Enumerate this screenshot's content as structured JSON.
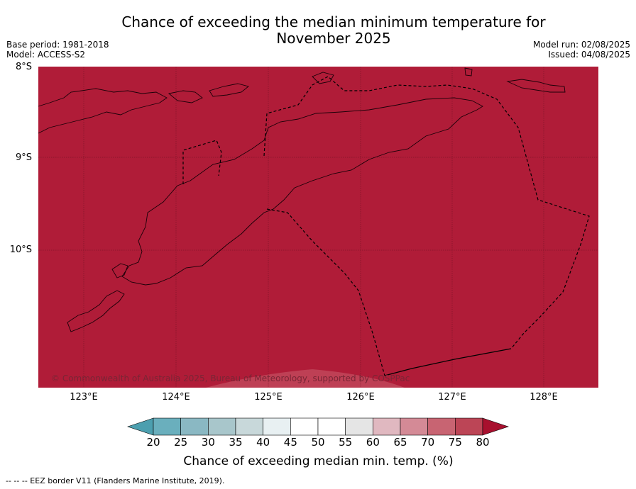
{
  "header": {
    "title_line1": "Chance of exceeding the median minimum temperature for",
    "title_line2": "November 2025",
    "base_period": "Base period: 1981-2018",
    "model": "Model: ACCESS-S2",
    "model_run": "Model run: 02/08/2025",
    "issued": "Issued: 04/08/2025"
  },
  "map": {
    "fill_color": "#b01c38",
    "region": "Timor / Savu Sea area",
    "fill_category": "80+",
    "lat_labels": [
      "8°S",
      "9°S",
      "10°S"
    ],
    "lon_labels": [
      "123°E",
      "124°E",
      "125°E",
      "126°E",
      "127°E",
      "128°E"
    ],
    "copyright": "© Commonwealth of Australia 2025, Bureau of Meteorology, supported by COSPPac"
  },
  "colorbar": {
    "ticks": [
      "20",
      "25",
      "30",
      "35",
      "40",
      "45",
      "50",
      "55",
      "60",
      "65",
      "70",
      "75",
      "80"
    ],
    "colors": [
      "#4c9faf",
      "#6aafbd",
      "#8ab8c3",
      "#a8c6cb",
      "#c8d8da",
      "#e8f0f2",
      "#ffffff",
      "#ffffff",
      "#e5e5e5",
      "#e0b8c0",
      "#d48a96",
      "#c86472",
      "#bc4556",
      "#a8102e"
    ],
    "label": "Chance of exceeding median min. temp. (%)"
  },
  "footer": {
    "eez_note": "--  --  -- EEZ border V11 (Flanders Marine Institute, 2019)."
  }
}
